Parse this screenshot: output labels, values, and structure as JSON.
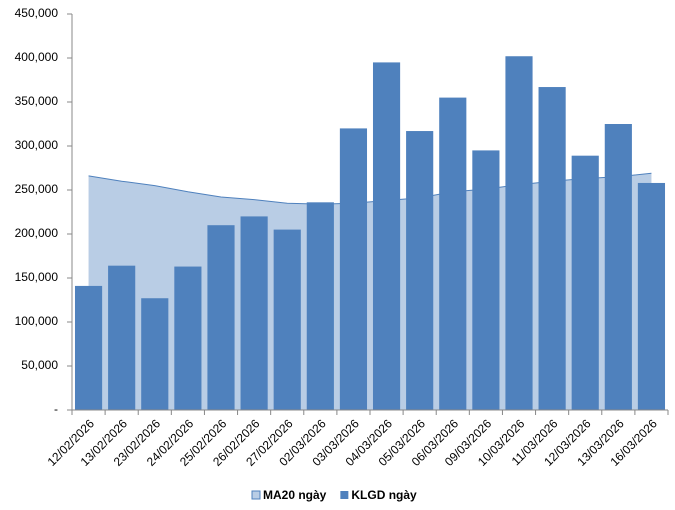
{
  "chart_data": {
    "type": "bar",
    "categories": [
      "12/02/2026",
      "13/02/2026",
      "23/02/2026",
      "24/02/2026",
      "25/02/2026",
      "26/02/2026",
      "27/02/2026",
      "02/03/2026",
      "03/03/2026",
      "04/03/2026",
      "05/03/2026",
      "06/03/2026",
      "09/03/2026",
      "10/03/2026",
      "11/03/2026",
      "12/03/2026",
      "13/03/2026",
      "16/03/2026"
    ],
    "series": [
      {
        "name": "MA20 ngày",
        "type": "area",
        "color": "#b9cde5",
        "values": [
          266000,
          260000,
          255000,
          248000,
          242000,
          239000,
          235000,
          234000,
          235000,
          238000,
          241000,
          248000,
          251000,
          256000,
          260000,
          263000,
          265000,
          269000
        ]
      },
      {
        "name": "KLGD ngày",
        "type": "bar",
        "color": "#4f81bd",
        "values": [
          141000,
          164000,
          127000,
          163000,
          210000,
          220000,
          205000,
          236000,
          320000,
          395000,
          317000,
          355000,
          295000,
          402000,
          367000,
          289000,
          325000,
          258000
        ]
      }
    ],
    "ylim": [
      0,
      450000
    ],
    "yticks": [
      {
        "value": 0,
        "label": "-"
      },
      {
        "value": 50000,
        "label": "50,000"
      },
      {
        "value": 100000,
        "label": "100,000"
      },
      {
        "value": 150000,
        "label": "150,000"
      },
      {
        "value": 200000,
        "label": "200,000"
      },
      {
        "value": 250000,
        "label": "250,000"
      },
      {
        "value": 300000,
        "label": "300,000"
      },
      {
        "value": 350000,
        "label": "350,000"
      },
      {
        "value": 400000,
        "label": "400,000"
      },
      {
        "value": 450000,
        "label": "450,000"
      }
    ],
    "legend": "bottom"
  }
}
